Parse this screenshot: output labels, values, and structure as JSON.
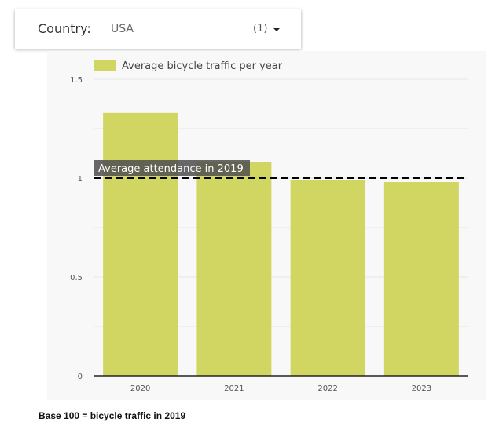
{
  "filter": {
    "label": "Country:",
    "value": "USA",
    "count": "(1)"
  },
  "chart_data": {
    "type": "bar",
    "categories": [
      "2020",
      "2021",
      "2022",
      "2023"
    ],
    "series": [
      {
        "name": "Average bicycle traffic per year",
        "values": [
          1.33,
          1.08,
          0.99,
          0.98
        ]
      }
    ],
    "ylim": [
      0,
      1.5
    ],
    "yticks": [
      "0",
      "0.5",
      "1",
      "1.5"
    ],
    "reference_line": {
      "value": 1,
      "label": "Average attendance in 2019"
    },
    "grid": true,
    "legend_position": "top-left",
    "bar_color": "#d1d663"
  },
  "footnote": "Base 100 = bicycle traffic in 2019"
}
